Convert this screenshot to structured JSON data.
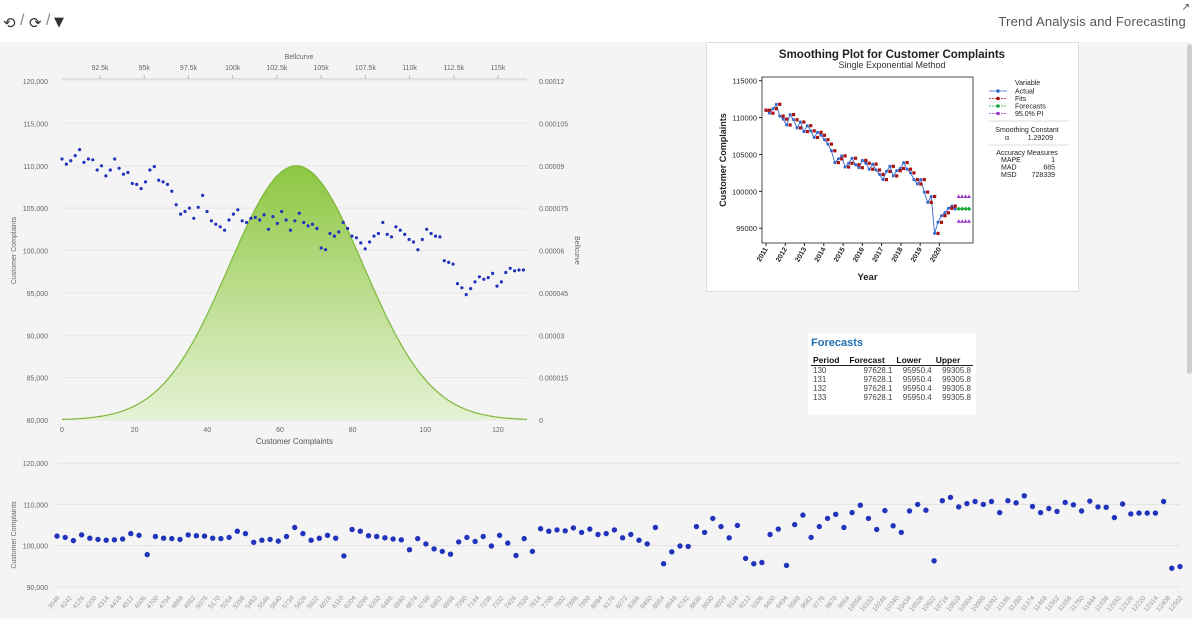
{
  "toolbar": {
    "history_icon": "history-icon",
    "refresh_icon": "refresh-icon",
    "filter_icon": "filter-icon",
    "separator": "/",
    "app_title": "Trend Analysis and Forecasting",
    "corner_mark": "↗"
  },
  "colors": {
    "point_blue": "#2233bb",
    "bell_green": "#8cc63f",
    "actual": "#3366cc",
    "fits": "#aa1111",
    "forecast": "#11aa33",
    "pi": "#9933cc"
  },
  "chart_data": [
    {
      "type": "scatter",
      "title": "",
      "xlabel": "Customer Complaints",
      "ylabel": "Customer Complaints",
      "y2label": "Bellcurve",
      "x2label": "Bellcurve",
      "xlim": [
        0,
        128
      ],
      "ylim": [
        80000,
        120000
      ],
      "x_ticks": [
        "0",
        "20",
        "40",
        "60",
        "80",
        "100",
        "120"
      ],
      "y_ticks": [
        "80,000",
        "85,000",
        "90,000",
        "95,000",
        "100,000",
        "105,000",
        "110,000",
        "115,000",
        "120,000"
      ],
      "y2_ticks": [
        "0",
        "0.000015",
        "0.00003",
        "0.000045",
        "0.00006",
        "0.000075",
        "0.00009",
        "0.000105",
        "0.00012"
      ],
      "x2_ticks": [
        "92.5k",
        "95k",
        "97.5k",
        "100k",
        "102.5k",
        "105k",
        "107.5k",
        "110k",
        "112.5k",
        "115k"
      ],
      "series": [
        {
          "values": [
            110800,
            110200,
            110600,
            111200,
            111900,
            110400,
            110800,
            110700,
            109500,
            110000,
            108800,
            109500,
            110800,
            109700,
            109000,
            109200,
            107900,
            107800,
            107300,
            108100,
            109500,
            109900,
            108300,
            108100,
            107800,
            107000,
            105400,
            104300,
            104600,
            105000,
            103800,
            105100,
            106500,
            104600,
            103500,
            103100,
            102800,
            102400,
            103600,
            104300,
            104800,
            103500,
            103300,
            103800,
            103900,
            103600,
            104200,
            102500,
            104000,
            103200,
            104600,
            103600,
            102400,
            103500,
            104400,
            103300,
            102900,
            103100,
            102600,
            100300,
            100100,
            102000,
            101700,
            102200,
            103300,
            102600,
            101700,
            101500,
            100900,
            100200,
            101000,
            101700,
            102000,
            103300,
            101900,
            101600,
            102800,
            102400,
            101900,
            101300,
            101000,
            100100,
            101300,
            102500,
            102000,
            101700,
            101600,
            98800,
            98600,
            98400,
            96100,
            95600,
            94800,
            95500,
            96300,
            96900,
            96600,
            96800,
            97300,
            95800,
            96300,
            97400,
            97900,
            97600,
            97700,
            97700
          ]
        },
        {
          "name": "Bellcurve",
          "mean": 64.5,
          "sd": 18.5,
          "peak": 9e-05
        }
      ]
    },
    {
      "type": "line",
      "title": "Smoothing Plot for Customer Complaints",
      "subtitle": "Single Exponential Method",
      "xlabel": "Year",
      "ylabel": "Customer Complaints",
      "x_ticks": [
        "2011",
        "2012",
        "2013",
        "2014",
        "2015",
        "2016",
        "2017",
        "2018",
        "2019",
        "2020"
      ],
      "y_ticks": [
        "95000",
        "100000",
        "105000",
        "110000",
        "115000"
      ],
      "ylim": [
        93000,
        115500
      ],
      "legend": {
        "title": "Variable",
        "items": [
          "Actual",
          "Fits",
          "Forecasts",
          "95.0% PI"
        ]
      },
      "smoothing": {
        "title": "Smoothing Constant",
        "label": "α",
        "value": "1.29209"
      },
      "accuracy": {
        "title": "Accuracy Measures",
        "rows": [
          {
            "label": "MAPE",
            "value": "1"
          },
          {
            "label": "MAD",
            "value": "685"
          },
          {
            "label": "MSD",
            "value": "728339"
          }
        ]
      },
      "series": [
        {
          "name": "Actual",
          "values": [
            111000,
            110600,
            111200,
            111800,
            110200,
            109800,
            109000,
            110400,
            109700,
            108600,
            109400,
            108100,
            108900,
            108200,
            107300,
            108000,
            107600,
            107000,
            106400,
            105500,
            103900,
            104400,
            104800,
            103300,
            103800,
            104500,
            103600,
            103200,
            104200,
            103800,
            103000,
            103700,
            102900,
            102300,
            101600,
            102700,
            103400,
            102100,
            102800,
            103100,
            103900,
            103000,
            102500,
            101600,
            101000,
            101600,
            99900,
            98500,
            99300,
            94300,
            95800,
            96700,
            97100,
            97700,
            98000,
            97600
          ]
        },
        {
          "name": "Forecasts",
          "values": [
            97628.1,
            97628.1,
            97628.1,
            97628.1
          ]
        },
        {
          "name": "95.0% PI",
          "lower": [
            95950.4,
            95950.4,
            95950.4,
            95950.4
          ],
          "upper": [
            99305.8,
            99305.8,
            99305.8,
            99305.8
          ]
        }
      ]
    },
    {
      "type": "table",
      "title": "Forecasts",
      "columns": [
        "Period",
        "Forecast",
        "Lower",
        "Upper"
      ],
      "rows": [
        [
          "130",
          "97628.1",
          "95950.4",
          "99305.8"
        ],
        [
          "131",
          "97628.1",
          "95950.4",
          "99305.8"
        ],
        [
          "132",
          "97628.1",
          "95950.4",
          "99305.8"
        ],
        [
          "133",
          "97628.1",
          "95950.4",
          "99305.8"
        ]
      ]
    },
    {
      "type": "scatter",
      "title": "",
      "ylabel": "Customer Complaints",
      "ylim": [
        88000,
        122000
      ],
      "y_ticks": [
        "90,000",
        "100,000",
        "110,000",
        "120,000"
      ],
      "x_ticks": [
        "3948",
        "4242",
        "4126",
        "4200",
        "4314",
        "4418",
        "4512",
        "4606",
        "4700",
        "4794",
        "4888",
        "4982",
        "5076",
        "5170",
        "5264",
        "5358",
        "5452",
        "5546",
        "5640",
        "5734",
        "5828",
        "5922",
        "6016",
        "6110",
        "6204",
        "6298",
        "6392",
        "6486",
        "6580",
        "6674",
        "6768",
        "6862",
        "6956",
        "7050",
        "7144",
        "7238",
        "7332",
        "7426",
        "7520",
        "7614",
        "7708",
        "7802",
        "7896",
        "7990",
        "8084",
        "8178",
        "8272",
        "8366",
        "8460",
        "8554",
        "8648",
        "8742",
        "8836",
        "8930",
        "9024",
        "9118",
        "9212",
        "9306",
        "9400",
        "9494",
        "9588",
        "9682",
        "9776",
        "9870",
        "9964",
        "10058",
        "10152",
        "10246",
        "10340",
        "10434",
        "10528",
        "10622",
        "10716",
        "10810",
        "10904",
        "10998",
        "11092",
        "11186",
        "11280",
        "11374",
        "11468",
        "11562",
        "11656",
        "11750",
        "11844",
        "11938",
        "12032",
        "12126",
        "12220",
        "12314",
        "12408",
        "12502"
      ],
      "series": [
        {
          "values": [
            102300,
            102000,
            101200,
            102600,
            101800,
            101500,
            101300,
            101400,
            101600,
            102900,
            102500,
            97800,
            102200,
            101800,
            101700,
            101500,
            102600,
            102400,
            102300,
            101800,
            101700,
            102000,
            103500,
            102900,
            100800,
            101300,
            101500,
            101100,
            102200,
            104400,
            102900,
            101300,
            101800,
            102500,
            101800,
            97500,
            103900,
            103500,
            102400,
            102200,
            101900,
            101600,
            101400,
            99000,
            101700,
            100400,
            99200,
            98600,
            97900,
            100900,
            102000,
            101000,
            102200,
            99900,
            102500,
            100600,
            97600,
            101700,
            98600,
            104100,
            103500,
            103800,
            103600,
            104300,
            103200,
            104000,
            102700,
            102900,
            103800,
            101900,
            102700,
            101300,
            100400,
            104400,
            95600,
            98500,
            99900,
            99800,
            104600,
            103200,
            106600,
            104600,
            101900,
            104900,
            96900,
            95600,
            95900,
            102700,
            104000,
            95200,
            105100,
            107400,
            102000,
            104600,
            106600,
            107600,
            104400,
            108000,
            109800,
            106600,
            103900,
            108500,
            104800,
            103200,
            108400,
            110000,
            108600,
            96300,
            110900,
            111700,
            109400,
            110200,
            110700,
            110000,
            110700,
            108000,
            110900,
            110400,
            112100,
            109500,
            108000,
            109000,
            108300,
            110500,
            109900,
            108400,
            110800,
            109400,
            109300,
            106800,
            110100,
            107700,
            107900,
            107900,
            107900,
            110700,
            94500,
            94900
          ]
        }
      ]
    }
  ]
}
